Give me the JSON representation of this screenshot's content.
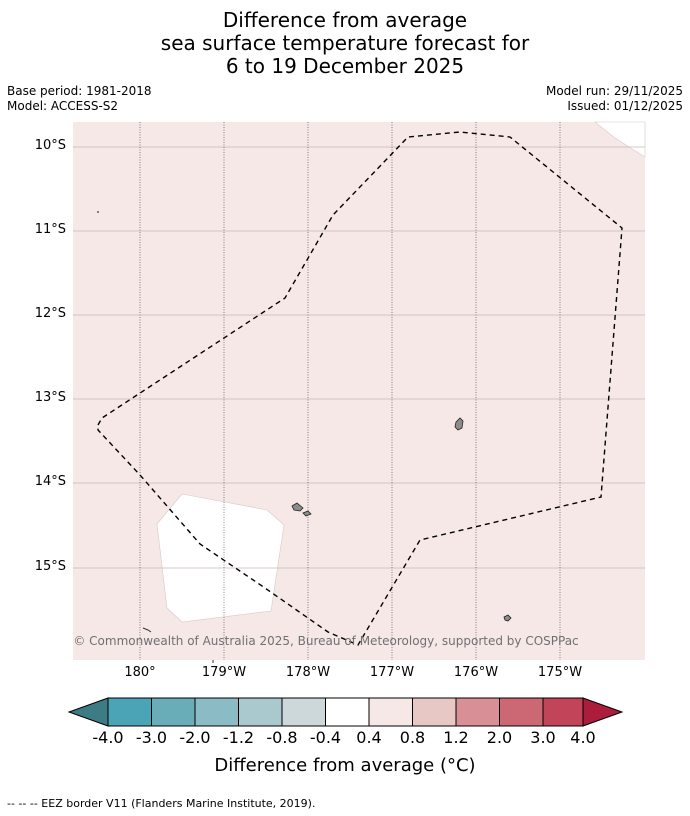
{
  "title": {
    "line1": "Difference from average",
    "line2": "sea surface temperature forecast for",
    "line3": "6 to 19 December 2025"
  },
  "meta": {
    "base_period": "Base period: 1981-2018",
    "model": "Model: ACCESS-S2",
    "model_run": "Model run: 29/11/2025",
    "issued": "Issued: 01/12/2025"
  },
  "map": {
    "latitude_labels": [
      "10°S",
      "11°S",
      "12°S",
      "13°S",
      "14°S",
      "15°S"
    ],
    "longitude_labels": [
      "180°",
      "179°W",
      "178°W",
      "177°W",
      "176°W",
      "175°W"
    ],
    "copyright": "© Commonwealth of Australia 2025, Bureau of Meteorology, supported by COSPPac",
    "background_anomaly_color": "#f5e8e7",
    "neutral_patch_color": "#ffffff",
    "eez_line_style": "dashed black"
  },
  "colorbar": {
    "colors": [
      "#3e7c85",
      "#4aa4b5",
      "#69adb9",
      "#8bbcc6",
      "#a9c9ce",
      "#cdd8da",
      "#ffffff",
      "#f5e8e7",
      "#e8c8c5",
      "#d88f95",
      "#cc6774",
      "#c24458",
      "#ac1c3b"
    ],
    "labels": [
      "-4.0",
      "-3.0",
      "-2.0",
      "-1.2",
      "-0.8",
      "-0.4",
      "0.4",
      "0.8",
      "1.2",
      "2.0",
      "3.0",
      "4.0"
    ],
    "title": "Difference from average (°C)"
  },
  "footer": {
    "legend_text": "--  --  -- EEZ border V11 (Flanders Marine Institute, 2019)."
  }
}
